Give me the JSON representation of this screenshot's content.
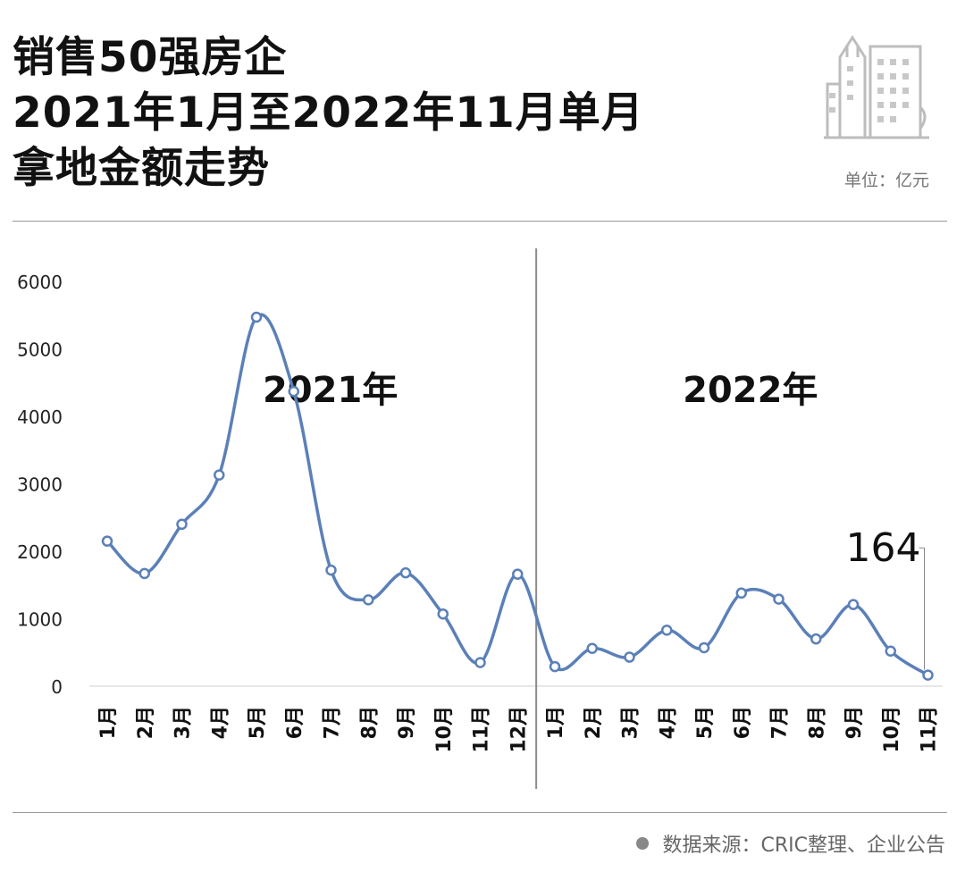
{
  "header": {
    "title_lines": [
      "销售50强房企",
      "2021年1月至2022年11月单月",
      "拿地金额走势"
    ],
    "unit": "单位：亿元"
  },
  "footer": {
    "source": "数据来源：CRIC整理、企业公告"
  },
  "colors": {
    "line": "#5b80b8",
    "marker_fill": "#ffffff",
    "divider": "#8c8c8c",
    "text": "#111111"
  },
  "icons": {
    "logo": "buildings-icon"
  },
  "chart_data": {
    "type": "line",
    "title": "",
    "ylim": [
      0,
      6000
    ],
    "y_ticks": [
      0,
      1000,
      2000,
      3000,
      4000,
      5000,
      6000
    ],
    "grid": false,
    "periods": [
      {
        "label": "2021年",
        "months": [
          "1月",
          "2月",
          "3月",
          "4月",
          "5月",
          "6月",
          "7月",
          "8月",
          "9月",
          "10月",
          "11月",
          "12月"
        ]
      },
      {
        "label": "2022年",
        "months": [
          "1月",
          "2月",
          "3月",
          "4月",
          "5月",
          "6月",
          "7月",
          "8月",
          "9月",
          "10月",
          "11月"
        ]
      }
    ],
    "categories": [
      "1月",
      "2月",
      "3月",
      "4月",
      "5月",
      "6月",
      "7月",
      "8月",
      "9月",
      "10月",
      "11月",
      "12月",
      "1月",
      "2月",
      "3月",
      "4月",
      "5月",
      "6月",
      "7月",
      "8月",
      "9月",
      "10月",
      "11月"
    ],
    "values": [
      2150,
      1670,
      2400,
      3130,
      5470,
      4370,
      1720,
      1280,
      1680,
      1070,
      350,
      1660,
      290,
      560,
      430,
      830,
      570,
      1380,
      1290,
      700,
      1210,
      520,
      164
    ],
    "annotations": [
      {
        "index": 22,
        "text": "164"
      }
    ]
  }
}
